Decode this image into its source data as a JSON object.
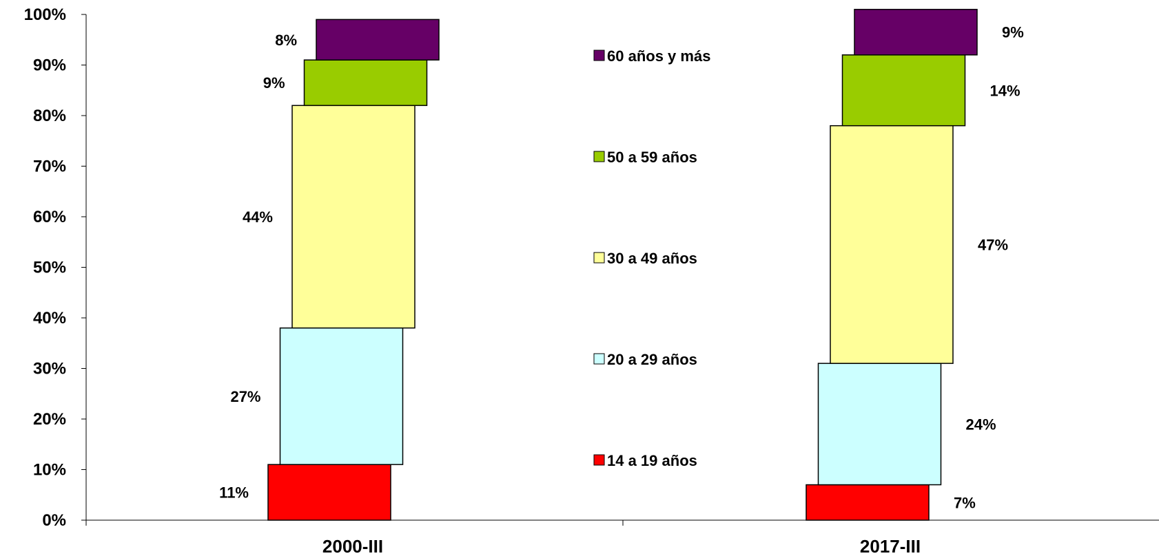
{
  "chart_data": {
    "type": "bar",
    "stacked": true,
    "percent_stacked": true,
    "categories": [
      "2000-III",
      "2017-III"
    ],
    "series": [
      {
        "name": "14 a 19 años",
        "color": "#ff0000",
        "values": [
          11,
          7
        ],
        "labels": [
          "11%",
          "7%"
        ]
      },
      {
        "name": "20 a 29 años",
        "color": "#ccffff",
        "values": [
          27,
          24
        ],
        "labels": [
          "27%",
          "24%"
        ]
      },
      {
        "name": "30 a 49 años",
        "color": "#ffff99",
        "values": [
          44,
          47
        ],
        "labels": [
          "44%",
          "47%"
        ]
      },
      {
        "name": "50 a 59 años",
        "color": "#99cc00",
        "values": [
          9,
          14
        ],
        "labels": [
          "9%",
          "14%"
        ]
      },
      {
        "name": "60 años y más",
        "color": "#660066",
        "values": [
          8,
          9
        ],
        "labels": [
          "8%",
          "9%"
        ]
      }
    ],
    "yticks": [
      "0%",
      "10%",
      "20%",
      "30%",
      "40%",
      "50%",
      "60%",
      "70%",
      "80%",
      "90%",
      "100%"
    ],
    "ylim": [
      0,
      100
    ],
    "legend_position": "center",
    "grid": false
  }
}
